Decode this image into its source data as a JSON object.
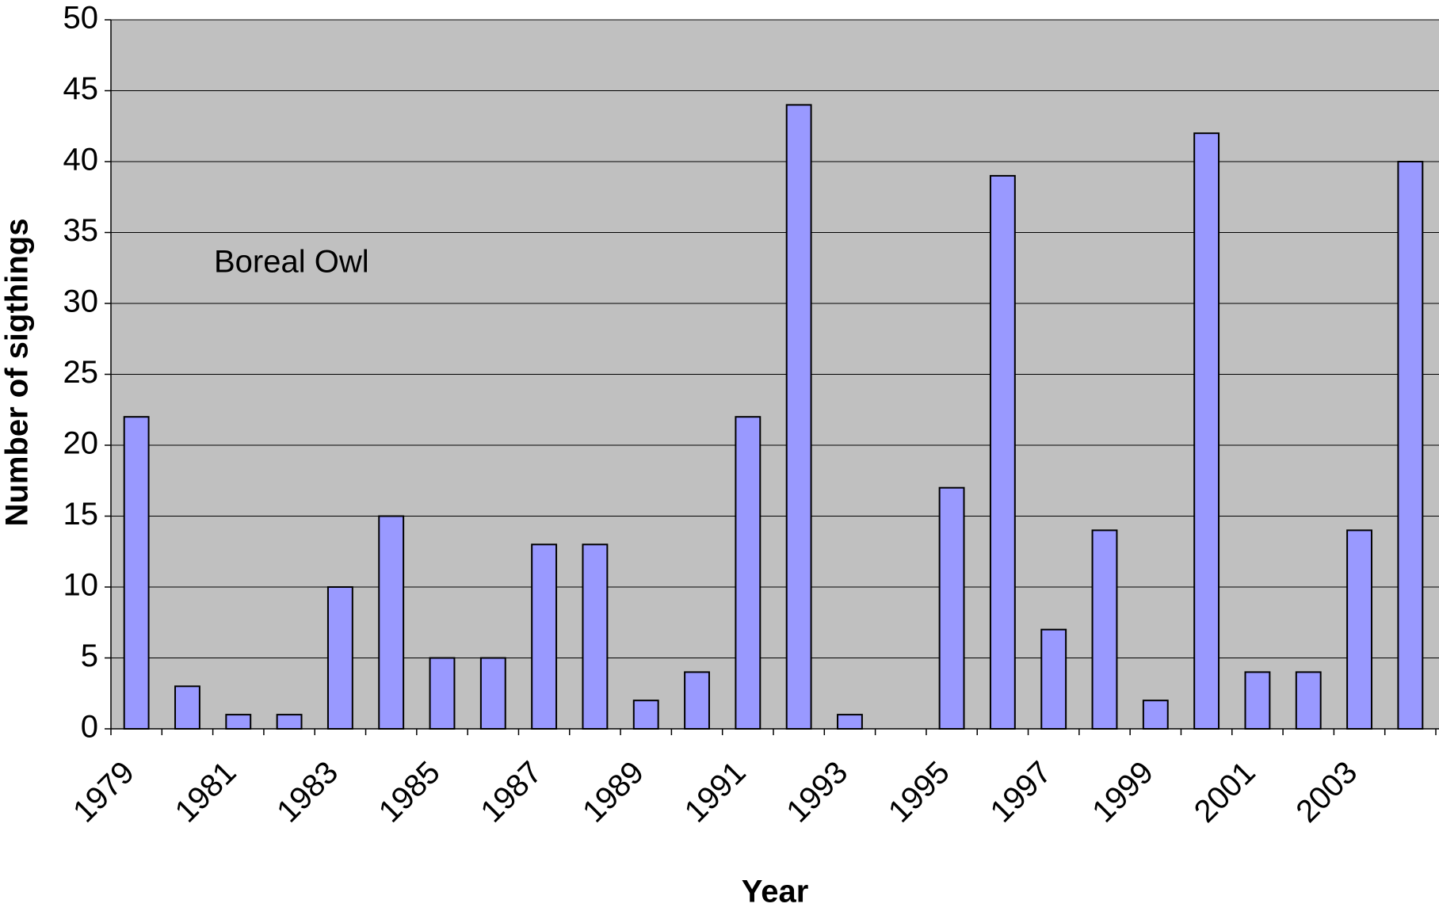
{
  "chart_data": {
    "type": "bar",
    "annotation": "Boreal Owl",
    "x_label": "Year",
    "y_label": "Number of sigthings",
    "categories": [
      "1979",
      null,
      "1981",
      null,
      "1983",
      null,
      "1985",
      null,
      "1987",
      null,
      "1989",
      null,
      "1991",
      null,
      "1993",
      null,
      "1995",
      null,
      "1997",
      null,
      "1999",
      null,
      "2001",
      null,
      "2003",
      null
    ],
    "values": [
      22,
      3,
      1,
      1,
      10,
      15,
      5,
      5,
      13,
      13,
      2,
      4,
      22,
      44,
      1,
      0,
      17,
      39,
      7,
      14,
      2,
      42,
      4,
      4,
      14,
      40
    ],
    "color": "#9999ff",
    "background": "#c0c0c0",
    "ylim": [
      0,
      50
    ],
    "yticks": [
      0,
      5,
      10,
      15,
      20,
      25,
      30,
      35,
      40,
      45,
      50
    ],
    "grid": true
  }
}
